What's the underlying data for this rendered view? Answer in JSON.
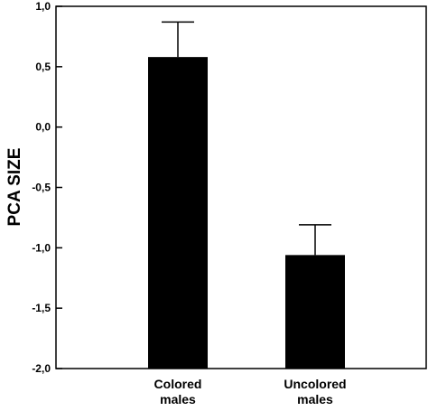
{
  "chart_data": {
    "type": "bar",
    "categories": [
      [
        "Colored",
        "males"
      ],
      [
        "Uncolored",
        "males"
      ]
    ],
    "values": [
      0.58,
      -1.06
    ],
    "error_upper": [
      0.87,
      -0.81
    ],
    "ylabel": "PCA SIZE",
    "ylim": [
      -2.0,
      1.0
    ],
    "yticks": [
      1.0,
      0.5,
      0.0,
      -0.5,
      -1.0,
      -1.5,
      -2.0
    ],
    "ytick_labels": [
      "1,0",
      "0,5",
      "0,0",
      "-0,5",
      "-1,0",
      "-1,5",
      "-2,0"
    ],
    "bar_color": "#000000",
    "grid": false,
    "legend": "none"
  }
}
